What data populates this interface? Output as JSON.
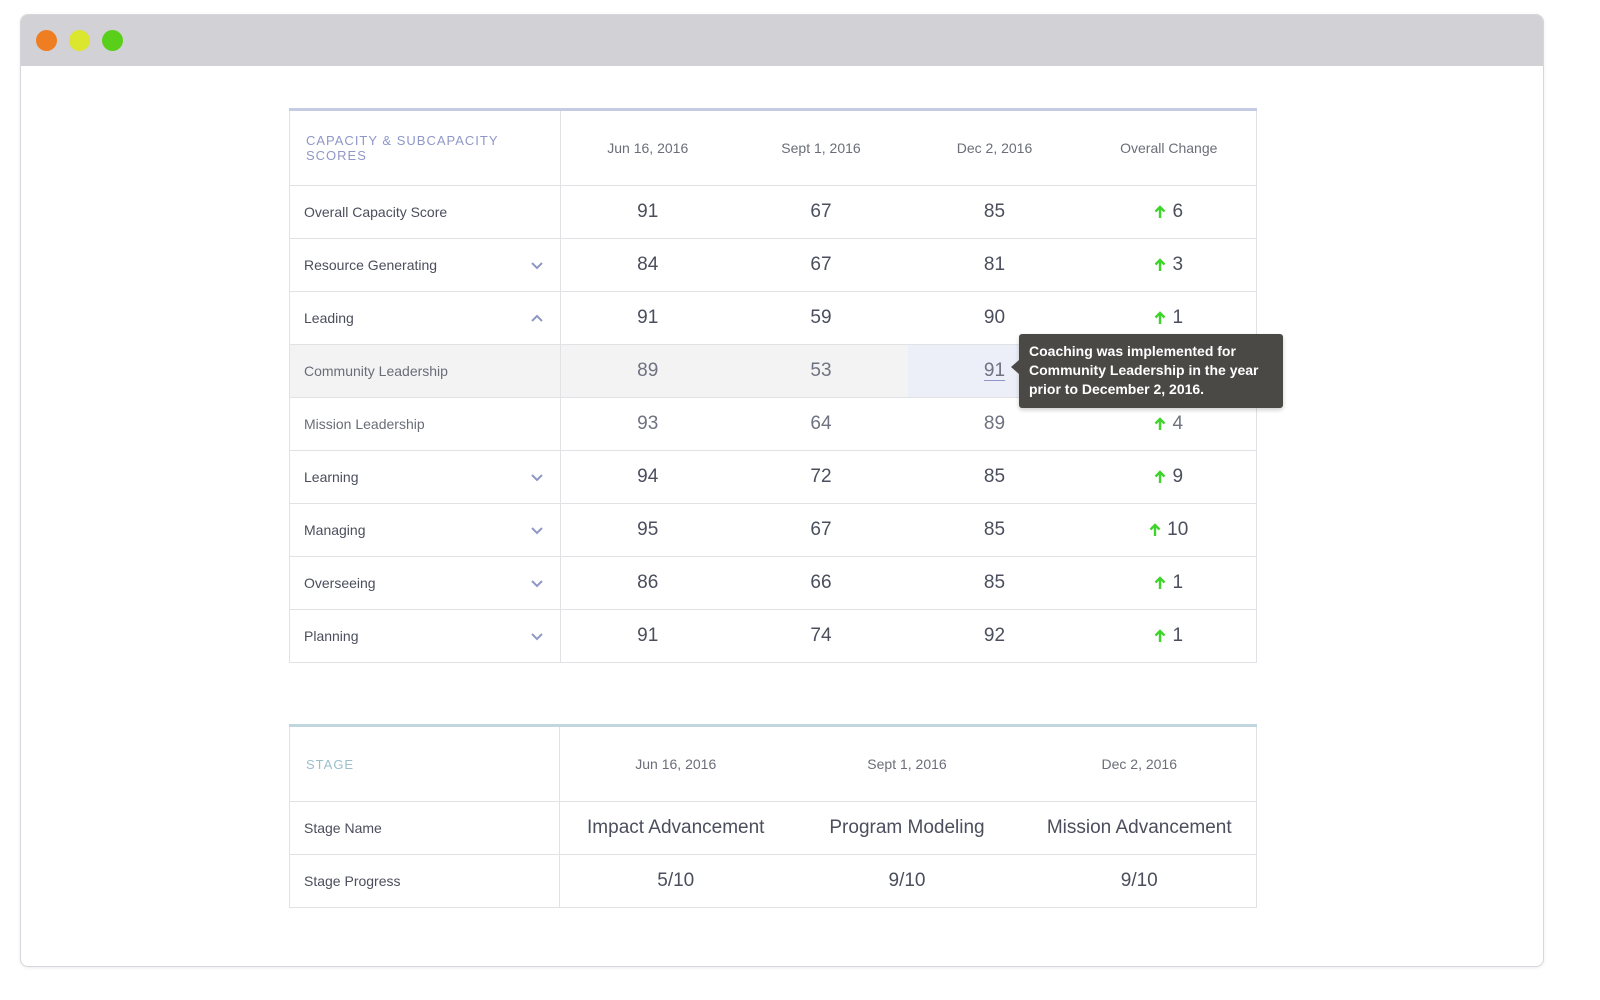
{
  "window": {
    "controls": [
      "close",
      "minimize",
      "zoom"
    ]
  },
  "capacity": {
    "title": "CAPACITY & SUBCAPACITY SCORES",
    "dates": [
      "Jun 16, 2016",
      "Sept 1, 2016",
      "Dec 2, 2016"
    ],
    "change_header": "Overall Change",
    "rows": [
      {
        "label": "Overall Capacity Score",
        "values": [
          "91",
          "67",
          "85"
        ],
        "change": "6",
        "level": "main",
        "expand": "none"
      },
      {
        "label": "Resource Generating",
        "values": [
          "84",
          "67",
          "81"
        ],
        "change": "3",
        "level": "main",
        "expand": "chevron-down-icon"
      },
      {
        "label": "Leading",
        "values": [
          "91",
          "59",
          "90"
        ],
        "change": "1",
        "level": "main",
        "expand": "chevron-up-icon"
      },
      {
        "label": "Community Leadership",
        "values": [
          "89",
          "53",
          "91"
        ],
        "change": "",
        "level": "sub",
        "expand": "none"
      },
      {
        "label": "Mission Leadership",
        "values": [
          "93",
          "64",
          "89"
        ],
        "change": "4",
        "level": "sub",
        "expand": "none"
      },
      {
        "label": "Learning",
        "values": [
          "94",
          "72",
          "85"
        ],
        "change": "9",
        "level": "main",
        "expand": "chevron-down-icon"
      },
      {
        "label": "Managing",
        "values": [
          "95",
          "67",
          "85"
        ],
        "change": "10",
        "level": "main",
        "expand": "chevron-down-icon"
      },
      {
        "label": "Overseeing",
        "values": [
          "86",
          "66",
          "85"
        ],
        "change": "1",
        "level": "main",
        "expand": "chevron-down-icon"
      },
      {
        "label": "Planning",
        "values": [
          "91",
          "74",
          "92"
        ],
        "change": "1",
        "level": "main",
        "expand": "chevron-down-icon"
      }
    ],
    "tooltip": "Coaching was implemented for Community Leadership in the year prior to December 2, 2016."
  },
  "stage": {
    "title": "STAGE",
    "dates": [
      "Jun 16, 2016",
      "Sept 1, 2016",
      "Dec 2, 2016"
    ],
    "rows": [
      {
        "label": "Stage Name",
        "values": [
          "Impact Advancement",
          "Program Modeling",
          "Mission Advancement"
        ]
      },
      {
        "label": "Stage Progress",
        "values": [
          "5/10",
          "9/10",
          "9/10"
        ]
      }
    ]
  },
  "colors": {
    "accent": "#8f97c8",
    "stage_accent": "#9bbfcd",
    "up_arrow": "#3fd42b",
    "tooltip_bg": "#4b4946"
  }
}
